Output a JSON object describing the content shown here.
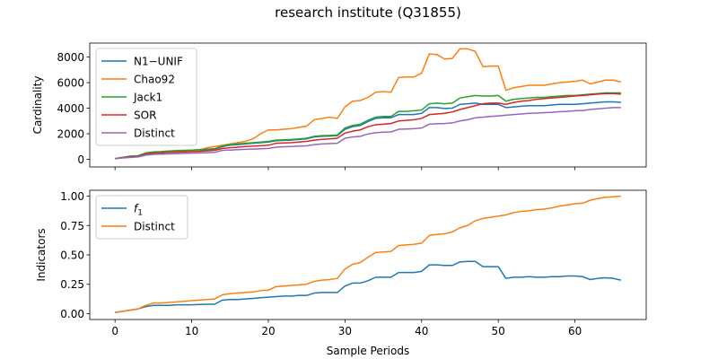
{
  "figure": {
    "title": "research institute (Q31855)"
  },
  "chart_data": [
    {
      "type": "line",
      "ylabel": "Cardinality",
      "xlabel": "",
      "xlim": [
        -3.3,
        69.3
      ],
      "ylim": [
        -600,
        9100
      ],
      "xticks": [
        0,
        10,
        20,
        30,
        40,
        50,
        60
      ],
      "yticks": [
        0,
        2000,
        4000,
        6000,
        8000
      ],
      "x_tick_labels_visible": false,
      "grid": false,
      "legend": "upper-left",
      "series": [
        {
          "name": "N1−UNIF",
          "color": "#1f77b4",
          "x": [
            0,
            1,
            2,
            3,
            4,
            5,
            6,
            7,
            8,
            9,
            10,
            11,
            12,
            13,
            14,
            15,
            16,
            17,
            18,
            19,
            20,
            21,
            22,
            23,
            24,
            25,
            26,
            27,
            28,
            29,
            30,
            31,
            32,
            33,
            34,
            35,
            36,
            37,
            38,
            39,
            40,
            41,
            42,
            43,
            44,
            45,
            46,
            47,
            48,
            49,
            50,
            51,
            52,
            53,
            54,
            55,
            56,
            57,
            58,
            59,
            60,
            61,
            62,
            63,
            64,
            65,
            66
          ],
          "values": [
            50,
            150,
            220,
            250,
            450,
            550,
            580,
            620,
            650,
            680,
            700,
            720,
            760,
            790,
            1000,
            1100,
            1150,
            1200,
            1250,
            1300,
            1350,
            1450,
            1480,
            1500,
            1550,
            1600,
            1750,
            1800,
            1820,
            1850,
            2350,
            2550,
            2650,
            2950,
            3200,
            3250,
            3250,
            3500,
            3500,
            3500,
            3600,
            4050,
            4050,
            3980,
            4000,
            4300,
            4350,
            4400,
            4300,
            4300,
            4300,
            4050,
            4100,
            4150,
            4200,
            4200,
            4200,
            4250,
            4300,
            4300,
            4300,
            4350,
            4400,
            4450,
            4500,
            4500,
            4450
          ]
        },
        {
          "name": "Chao92",
          "color": "#ff7f0e",
          "x": [
            0,
            1,
            2,
            3,
            4,
            5,
            6,
            7,
            8,
            9,
            10,
            11,
            12,
            13,
            14,
            15,
            16,
            17,
            18,
            19,
            20,
            21,
            22,
            23,
            24,
            25,
            26,
            27,
            28,
            29,
            30,
            31,
            32,
            33,
            34,
            35,
            36,
            37,
            38,
            39,
            40,
            41,
            42,
            43,
            44,
            45,
            46,
            47,
            48,
            49,
            50,
            51,
            52,
            53,
            54,
            55,
            56,
            57,
            58,
            59,
            60,
            61,
            62,
            63,
            64,
            65,
            66
          ],
          "values": [
            50,
            150,
            200,
            220,
            450,
            550,
            560,
            600,
            620,
            650,
            680,
            720,
            900,
            1000,
            1100,
            1200,
            1300,
            1400,
            1600,
            2000,
            2300,
            2300,
            2350,
            2400,
            2500,
            2600,
            3100,
            3200,
            3300,
            3200,
            4100,
            4550,
            4600,
            4850,
            5250,
            5300,
            5250,
            6400,
            6450,
            6450,
            6750,
            8250,
            8200,
            7850,
            7900,
            8650,
            8650,
            8450,
            7250,
            7300,
            7300,
            5400,
            5600,
            5700,
            5800,
            5800,
            5800,
            5900,
            6000,
            6050,
            6100,
            6200,
            5900,
            6050,
            6200,
            6200,
            6050
          ]
        },
        {
          "name": "Jack1",
          "color": "#2ca02c",
          "x": [
            0,
            1,
            2,
            3,
            4,
            5,
            6,
            7,
            8,
            9,
            10,
            11,
            12,
            13,
            14,
            15,
            16,
            17,
            18,
            19,
            20,
            21,
            22,
            23,
            24,
            25,
            26,
            27,
            28,
            29,
            30,
            31,
            32,
            33,
            34,
            35,
            36,
            37,
            38,
            39,
            40,
            41,
            42,
            43,
            44,
            45,
            46,
            47,
            48,
            49,
            50,
            51,
            52,
            53,
            54,
            55,
            56,
            57,
            58,
            59,
            60,
            61,
            62,
            63,
            64,
            65,
            66
          ],
          "values": [
            50,
            150,
            250,
            280,
            500,
            580,
            600,
            650,
            680,
            700,
            720,
            760,
            800,
            830,
            1050,
            1150,
            1200,
            1250,
            1300,
            1350,
            1400,
            1500,
            1530,
            1550,
            1600,
            1650,
            1800,
            1850,
            1870,
            1900,
            2450,
            2650,
            2750,
            3050,
            3300,
            3350,
            3350,
            3750,
            3750,
            3800,
            3850,
            4350,
            4400,
            4350,
            4400,
            4800,
            4900,
            5000,
            4950,
            4950,
            5000,
            4550,
            4700,
            4750,
            4800,
            4850,
            4850,
            4900,
            4950,
            5000,
            5000,
            5050,
            5100,
            5150,
            5200,
            5200,
            5200
          ]
        },
        {
          "name": "SOR",
          "color": "#d62728",
          "x": [
            0,
            1,
            2,
            3,
            4,
            5,
            6,
            7,
            8,
            9,
            10,
            11,
            12,
            13,
            14,
            15,
            16,
            17,
            18,
            19,
            20,
            21,
            22,
            23,
            24,
            25,
            26,
            27,
            28,
            29,
            30,
            31,
            32,
            33,
            34,
            35,
            36,
            37,
            38,
            39,
            40,
            41,
            42,
            43,
            44,
            45,
            46,
            47,
            48,
            49,
            50,
            51,
            52,
            53,
            54,
            55,
            56,
            57,
            58,
            59,
            60,
            61,
            62,
            63,
            64,
            65,
            66
          ],
          "values": [
            50,
            130,
            200,
            220,
            400,
            480,
            500,
            540,
            560,
            580,
            600,
            620,
            660,
            700,
            850,
            900,
            950,
            1000,
            1030,
            1060,
            1100,
            1250,
            1280,
            1300,
            1350,
            1400,
            1500,
            1560,
            1600,
            1650,
            2050,
            2200,
            2300,
            2550,
            2700,
            2750,
            2800,
            3000,
            3050,
            3100,
            3200,
            3500,
            3550,
            3600,
            3700,
            3900,
            4050,
            4200,
            4350,
            4400,
            4400,
            4300,
            4450,
            4550,
            4600,
            4700,
            4750,
            4800,
            4850,
            4900,
            4950,
            5000,
            5050,
            5100,
            5150,
            5150,
            5100
          ]
        },
        {
          "name": "Distinct",
          "color": "#9467bd",
          "x": [
            0,
            1,
            2,
            3,
            4,
            5,
            6,
            7,
            8,
            9,
            10,
            11,
            12,
            13,
            14,
            15,
            16,
            17,
            18,
            19,
            20,
            21,
            22,
            23,
            24,
            25,
            26,
            27,
            28,
            29,
            30,
            31,
            32,
            33,
            34,
            35,
            36,
            37,
            38,
            39,
            40,
            41,
            42,
            43,
            44,
            45,
            46,
            47,
            48,
            49,
            50,
            51,
            52,
            53,
            54,
            55,
            56,
            57,
            58,
            59,
            60,
            61,
            62,
            63,
            64,
            65,
            66
          ],
          "values": [
            50,
            100,
            150,
            180,
            320,
            380,
            400,
            420,
            440,
            460,
            480,
            500,
            520,
            540,
            700,
            720,
            750,
            780,
            800,
            820,
            850,
            950,
            980,
            1000,
            1030,
            1050,
            1150,
            1200,
            1230,
            1250,
            1650,
            1750,
            1800,
            1980,
            2080,
            2120,
            2140,
            2350,
            2370,
            2400,
            2450,
            2750,
            2780,
            2800,
            2850,
            3000,
            3100,
            3250,
            3300,
            3350,
            3400,
            3450,
            3500,
            3550,
            3600,
            3620,
            3650,
            3680,
            3720,
            3750,
            3800,
            3820,
            3900,
            3950,
            4000,
            4050,
            4050
          ]
        }
      ]
    },
    {
      "type": "line",
      "ylabel": "Indicators",
      "xlabel": "Sample Periods",
      "xlim": [
        -3.3,
        69.3
      ],
      "ylim": [
        -0.05,
        1.05
      ],
      "xticks": [
        0,
        10,
        20,
        30,
        40,
        50,
        60
      ],
      "yticks": [
        0.0,
        0.25,
        0.5,
        0.75,
        1.0
      ],
      "xtick_labels": [
        "0",
        "10",
        "20",
        "30",
        "40",
        "50",
        "60"
      ],
      "ytick_labels": [
        "0.00",
        "0.25",
        "0.50",
        "0.75",
        "1.00"
      ],
      "grid": false,
      "legend": "upper-left",
      "series": [
        {
          "name": "f1",
          "name_base": "f",
          "name_sub": "1",
          "color": "#1f77b4",
          "x": [
            0,
            1,
            2,
            3,
            4,
            5,
            6,
            7,
            8,
            9,
            10,
            11,
            12,
            13,
            14,
            15,
            16,
            17,
            18,
            19,
            20,
            21,
            22,
            23,
            24,
            25,
            26,
            27,
            28,
            29,
            30,
            31,
            32,
            33,
            34,
            35,
            36,
            37,
            38,
            39,
            40,
            41,
            42,
            43,
            44,
            45,
            46,
            47,
            48,
            49,
            50,
            51,
            52,
            53,
            54,
            55,
            56,
            57,
            58,
            59,
            60,
            61,
            62,
            63,
            64,
            65,
            66
          ],
          "values": [
            0.01,
            0.02,
            0.03,
            0.04,
            0.06,
            0.07,
            0.07,
            0.07,
            0.075,
            0.075,
            0.075,
            0.078,
            0.08,
            0.08,
            0.115,
            0.12,
            0.12,
            0.125,
            0.13,
            0.135,
            0.14,
            0.145,
            0.15,
            0.15,
            0.155,
            0.155,
            0.175,
            0.18,
            0.18,
            0.18,
            0.235,
            0.26,
            0.26,
            0.28,
            0.31,
            0.31,
            0.31,
            0.35,
            0.35,
            0.35,
            0.36,
            0.415,
            0.415,
            0.41,
            0.41,
            0.44,
            0.445,
            0.445,
            0.4,
            0.4,
            0.4,
            0.3,
            0.31,
            0.31,
            0.315,
            0.31,
            0.31,
            0.315,
            0.315,
            0.32,
            0.32,
            0.315,
            0.29,
            0.3,
            0.305,
            0.3,
            0.285
          ]
        },
        {
          "name": "Distinct",
          "color": "#ff7f0e",
          "x": [
            0,
            1,
            2,
            3,
            4,
            5,
            6,
            7,
            8,
            9,
            10,
            11,
            12,
            13,
            14,
            15,
            16,
            17,
            18,
            19,
            20,
            21,
            22,
            23,
            24,
            25,
            26,
            27,
            28,
            29,
            30,
            31,
            32,
            33,
            34,
            35,
            36,
            37,
            38,
            39,
            40,
            41,
            42,
            43,
            44,
            45,
            46,
            47,
            48,
            49,
            50,
            51,
            52,
            53,
            54,
            55,
            56,
            57,
            58,
            59,
            60,
            61,
            62,
            63,
            64,
            65,
            66
          ],
          "values": [
            0.01,
            0.02,
            0.03,
            0.04,
            0.07,
            0.09,
            0.09,
            0.095,
            0.1,
            0.105,
            0.11,
            0.115,
            0.12,
            0.125,
            0.16,
            0.17,
            0.175,
            0.18,
            0.185,
            0.195,
            0.2,
            0.23,
            0.235,
            0.24,
            0.245,
            0.25,
            0.275,
            0.285,
            0.29,
            0.3,
            0.38,
            0.42,
            0.435,
            0.48,
            0.52,
            0.525,
            0.53,
            0.58,
            0.585,
            0.59,
            0.6,
            0.665,
            0.675,
            0.68,
            0.695,
            0.73,
            0.75,
            0.79,
            0.81,
            0.82,
            0.83,
            0.84,
            0.86,
            0.87,
            0.875,
            0.885,
            0.89,
            0.9,
            0.915,
            0.925,
            0.935,
            0.94,
            0.965,
            0.98,
            0.99,
            0.995,
            1.0
          ]
        }
      ]
    }
  ]
}
